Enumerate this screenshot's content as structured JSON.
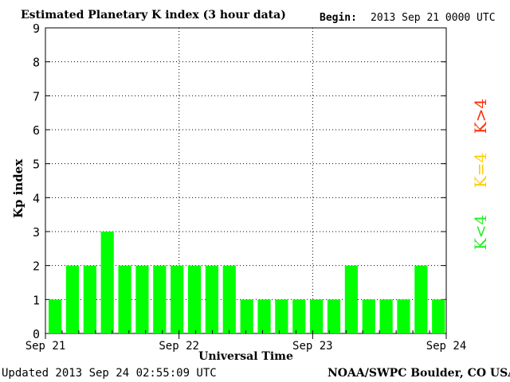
{
  "header": {
    "title": "Estimated Planetary K index (3 hour data)",
    "begin_label": "Begin:",
    "begin_value": "2013 Sep 21 0000 UTC"
  },
  "footer": {
    "updated": "Updated 2013 Sep 24 02:55:09 UTC",
    "org": "NOAA/SWPC Boulder, CO USA"
  },
  "legend": [
    {
      "label": "K>4",
      "color": "#ff2a00"
    },
    {
      "label": "K=4",
      "color": "#ffcc00"
    },
    {
      "label": "K<4",
      "color": "#22ee22"
    }
  ],
  "chart_data": {
    "type": "bar",
    "title": "Estimated Planetary K index (3 hour data)",
    "xlabel": "Universal Time",
    "ylabel": "Kp index",
    "ylim": [
      0,
      9
    ],
    "yticks": [
      "0",
      "1",
      "2",
      "3",
      "4",
      "5",
      "6",
      "7",
      "8",
      "9"
    ],
    "xticks": [
      "Sep 21",
      "Sep 22",
      "Sep 23",
      "Sep 24"
    ],
    "values": [
      1,
      2,
      2,
      3,
      2,
      2,
      2,
      2,
      2,
      2,
      2,
      1,
      1,
      1,
      1,
      1,
      1,
      2,
      1,
      1,
      1,
      2,
      1
    ],
    "bar_color": "#00ff00",
    "grid": true
  }
}
